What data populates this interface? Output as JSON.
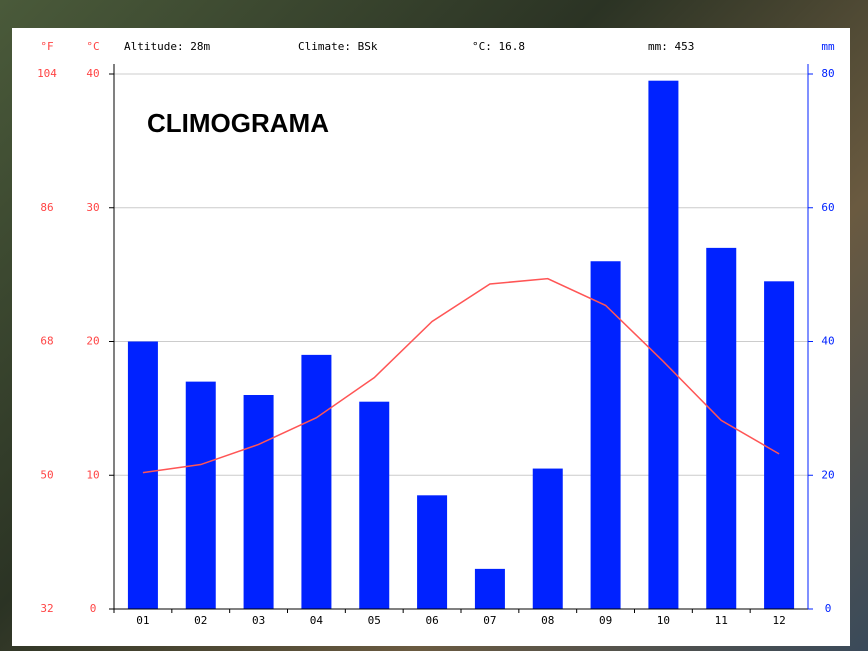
{
  "chart_data": {
    "type": "bar",
    "title": "CLIMOGRAMA",
    "header": [
      "Altitude: 28m",
      "Climate: BSk",
      "°C: 16.8",
      "mm: 453"
    ],
    "f_label": "°F",
    "y_label": "°C",
    "y2_label": "mm",
    "categories": [
      "01",
      "02",
      "03",
      "04",
      "05",
      "06",
      "07",
      "08",
      "09",
      "10",
      "11",
      "12"
    ],
    "series": [
      {
        "type": "bar",
        "axis": "y2",
        "color": "#0022ff",
        "values": [
          40,
          34,
          32,
          38,
          31,
          17,
          6,
          21,
          52,
          79,
          54,
          49
        ]
      },
      {
        "type": "line",
        "axis": "y",
        "color": "#ff5555",
        "values": [
          10.2,
          10.8,
          12.3,
          14.3,
          17.3,
          21.5,
          24.3,
          24.7,
          22.7,
          18.5,
          14.1,
          11.6
        ]
      }
    ],
    "ylim": [
      0,
      40
    ],
    "yticks": [
      0,
      10,
      20,
      30,
      40
    ],
    "y2lim": [
      0,
      80
    ],
    "y2ticks": [
      0,
      20,
      40,
      60,
      80
    ],
    "flim": [
      32,
      104
    ],
    "fticks": [
      32,
      50,
      68,
      86,
      104
    ],
    "grid": true
  }
}
